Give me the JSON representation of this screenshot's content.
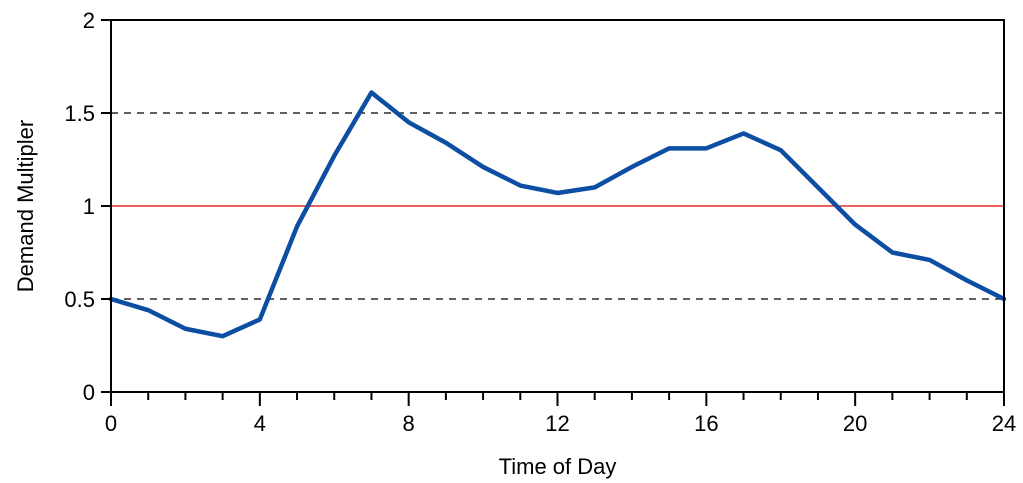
{
  "chart_data": {
    "type": "line",
    "title": "",
    "xlabel": "Time of Day",
    "ylabel": "Demand Multipler",
    "xlim": [
      0,
      24
    ],
    "ylim": [
      0,
      2
    ],
    "x_ticks_major": [
      0,
      4,
      8,
      12,
      16,
      20,
      24
    ],
    "x_ticks_minor": [
      1,
      2,
      3,
      5,
      6,
      7,
      9,
      10,
      11,
      13,
      14,
      15,
      17,
      18,
      19,
      21,
      22,
      23
    ],
    "y_ticks": [
      0,
      0.5,
      1,
      1.5,
      2
    ],
    "x_tick_labels": [
      "0",
      "4",
      "8",
      "12",
      "16",
      "20",
      "24"
    ],
    "y_tick_labels": [
      "0",
      "0.5",
      "1",
      "1.5",
      "2"
    ],
    "grid": false,
    "reference_lines": [
      {
        "y": 1.5,
        "style": "dashed",
        "color": "#000000"
      },
      {
        "y": 1.0,
        "style": "solid",
        "color": "#e00000"
      },
      {
        "y": 0.5,
        "style": "dashed",
        "color": "#000000"
      }
    ],
    "series": [
      {
        "color": "#0b4ea2",
        "x": [
          0,
          1,
          2,
          3,
          4,
          5,
          6,
          7,
          8,
          9,
          10,
          11,
          12,
          13,
          14,
          15,
          16,
          17,
          18,
          19,
          20,
          21,
          22,
          23,
          24
        ],
        "y": [
          0.5,
          0.44,
          0.34,
          0.3,
          0.39,
          0.89,
          1.27,
          1.61,
          1.45,
          1.34,
          1.21,
          1.11,
          1.07,
          1.1,
          1.21,
          1.31,
          1.31,
          1.39,
          1.3,
          1.1,
          0.9,
          0.75,
          0.71,
          0.6,
          0.5
        ]
      }
    ]
  }
}
